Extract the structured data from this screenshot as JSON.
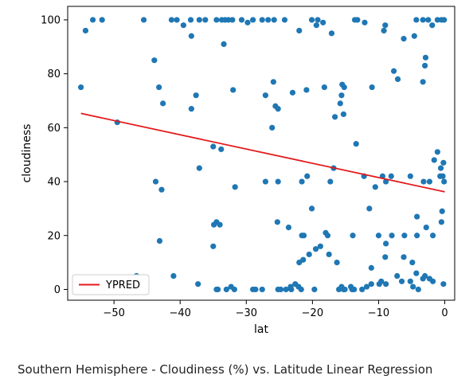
{
  "chart_data": {
    "type": "scatter",
    "xlabel": "lat",
    "ylabel": "cloudiness",
    "xlim": [
      -57,
      1.5
    ],
    "ylim": [
      -4,
      105
    ],
    "xticks": [
      -50,
      -40,
      -30,
      -20,
      -10,
      0
    ],
    "yticks": [
      0,
      20,
      40,
      60,
      80,
      100
    ],
    "grid": false,
    "legend": {
      "placement": "lower-left",
      "entries": [
        "YPRED"
      ]
    },
    "colors": {
      "points": "#1f77b4",
      "regression": "#e31a1c"
    },
    "regression_line": {
      "name": "YPRED",
      "x": [
        -55,
        0
      ],
      "y": [
        65.3,
        36.2
      ]
    },
    "points": {
      "x": [
        -55.0,
        -54.3,
        -53.2,
        -51.8,
        -45.5,
        -41.3,
        -40.5,
        -39.5,
        -38.4,
        -36.2,
        -37.1,
        -34.5,
        -33.7,
        -33.2,
        -32.7,
        -32.1,
        -30.7,
        -29.8,
        -29.0,
        -27.6,
        -26.7,
        -25.8,
        -24.2,
        -22.0,
        -20.1,
        -19.2,
        -18.4,
        -17.1,
        -13.6,
        -13.2,
        -12.1,
        -9.2,
        -6.2,
        -4.3,
        -3.3,
        -2.5,
        -1.9,
        -1.1,
        -0.5,
        -0.1,
        -33.4,
        -43.9,
        -38.3,
        -19.4,
        -4.6,
        -3.3,
        -3.0,
        -2.9,
        -43.2,
        -9.0,
        -7.7,
        -42.6,
        -38.3,
        -37.6,
        -32.0,
        -25.9,
        -27.1,
        -25.2,
        -23.0,
        -20.9,
        -18.2,
        -15.2,
        -15.5,
        -11.0,
        -7.1,
        -26.1,
        -25.6,
        -49.5,
        -15.6,
        -16.6,
        -15.8,
        -13.4,
        -15.3,
        -12.2,
        -8.9,
        -10.5,
        -9.4,
        -4.2,
        -3.2,
        -2.3,
        -1.6,
        -1.1,
        -0.2,
        -0.6,
        -0.3,
        -0.7,
        -35.0,
        -33.8,
        -43.7,
        -42.8,
        -37.1,
        -31.7,
        -27.1,
        -25.2,
        -21.6,
        -17.3,
        -8.1,
        -16.8,
        -20.8,
        -5.2,
        -0.1,
        -34.9,
        -34.5,
        -34.0,
        -25.3,
        -23.6,
        -21.3,
        -21.6,
        -20.1,
        -18.0,
        -17.7,
        -11.4,
        -13.9,
        -10.0,
        -8.9,
        -8.0,
        -6.1,
        -4.2,
        -2.8,
        -0.4,
        -0.5,
        -1.8,
        -43.1,
        -35.0,
        -20.5,
        -22.0,
        -21.4,
        -18.8,
        -19.5,
        -17.5,
        -16.3,
        -11.1,
        -9.0,
        -6.2,
        -4.9,
        -4.3,
        -46.6,
        -46.6,
        -41.0,
        -37.3,
        -34.5,
        -34.3,
        -33.0,
        -32.3,
        -31.8,
        -29.0,
        -28.6,
        -27.6,
        -25.2,
        -24.8,
        -24.0,
        -23.2,
        -22.6,
        -22.1,
        -21.7,
        -19.7,
        -16.0,
        -15.6,
        -15.3,
        -15.1,
        -14.0,
        -14.2,
        -13.7,
        -12.5,
        -11.1,
        -9.9,
        -9.6,
        -7.2,
        -6.5,
        -5.2,
        -4.8,
        -4.0,
        -3.3,
        -3.0,
        -1.8,
        -0.2,
        -23.3,
        -11.8,
        -8.9,
        -2.3
      ],
      "y": [
        75,
        96,
        100,
        100,
        100,
        100,
        100,
        98,
        100,
        100,
        100,
        100,
        100,
        100,
        100,
        100,
        100,
        99,
        100,
        100,
        100,
        100,
        100,
        96,
        100,
        100,
        99,
        95,
        100,
        100,
        99,
        96,
        93,
        100,
        100,
        100,
        98,
        100,
        100,
        100,
        91,
        85,
        94,
        98,
        94,
        77,
        83,
        86,
        75,
        98,
        81,
        69,
        67,
        72,
        74,
        77,
        72,
        67,
        73,
        74,
        75,
        75,
        76,
        75,
        78,
        60,
        68,
        62,
        72,
        64,
        69,
        54,
        65,
        42,
        40,
        38,
        42,
        27,
        40,
        40,
        48,
        51,
        47,
        45,
        42,
        42,
        53,
        52,
        40,
        37,
        45,
        38,
        40,
        40,
        40,
        40,
        42,
        45,
        42,
        42,
        40,
        24,
        25,
        24,
        25,
        23,
        20,
        20,
        30,
        21,
        20,
        30,
        20,
        20,
        17,
        20,
        20,
        20,
        23,
        29,
        25,
        20,
        18,
        16,
        13,
        10,
        11,
        16,
        15,
        13,
        10,
        8,
        12,
        12,
        10,
        6,
        5,
        5,
        5,
        2,
        0,
        0,
        0,
        1,
        0,
        0,
        0,
        0,
        0,
        0,
        0,
        0,
        2,
        1,
        0,
        0,
        0,
        1,
        0,
        0,
        0,
        1,
        0,
        0,
        2,
        2,
        3,
        5,
        3,
        3,
        1,
        0,
        4,
        5,
        3,
        2,
        1,
        1,
        2,
        4
      ]
    },
    "caption": "Southern Hemisphere - Cloudiness (%) vs. Latitude Linear Regression"
  }
}
